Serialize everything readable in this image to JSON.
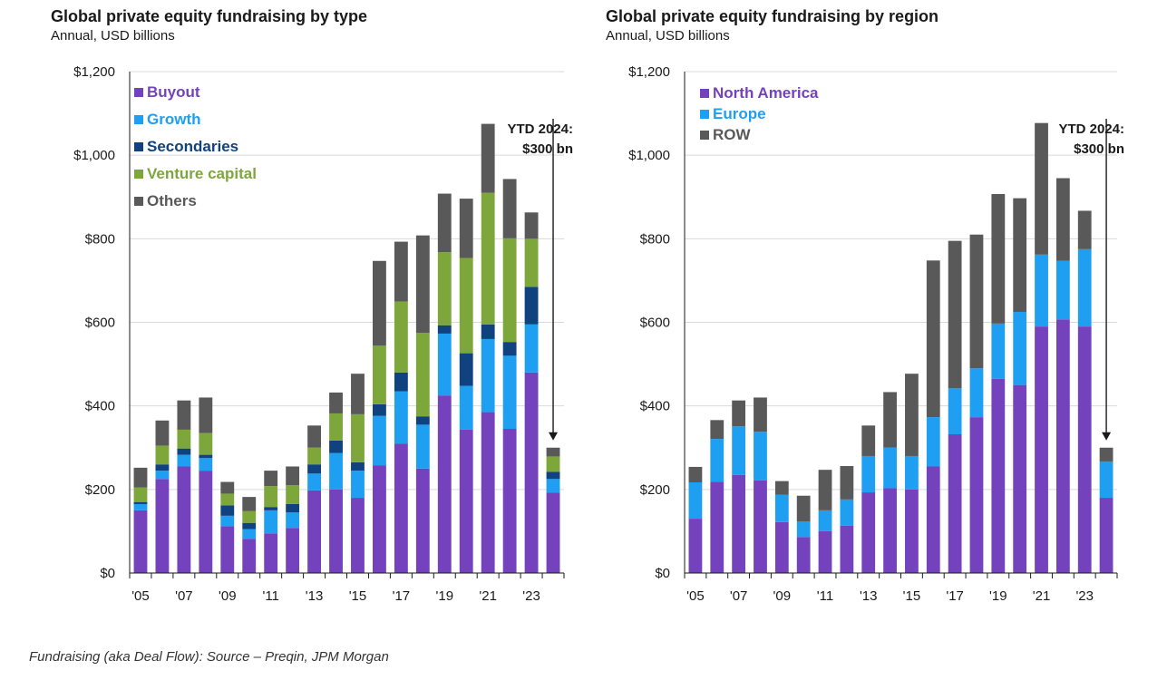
{
  "chart_data": [
    {
      "type": "bar",
      "stacked": true,
      "title": "Global private equity fundraising by type",
      "subtitle": "Annual, USD billions",
      "xlabel": "",
      "ylabel": "",
      "ylim": [
        0,
        1200
      ],
      "yticks": [
        0,
        200,
        400,
        600,
        800,
        1000,
        1200
      ],
      "ytick_labels": [
        "$0",
        "$200",
        "$400",
        "$600",
        "$800",
        "$1,000",
        "$1,200"
      ],
      "categories": [
        "2005",
        "2006",
        "2007",
        "2008",
        "2009",
        "2010",
        "2011",
        "2012",
        "2013",
        "2014",
        "2015",
        "2016",
        "2017",
        "2018",
        "2019",
        "2020",
        "2021",
        "2022",
        "2023",
        "2024"
      ],
      "xtick_labels": [
        "'05",
        "",
        "'07",
        "",
        "'09",
        "",
        "'11",
        "",
        "'13",
        "",
        "'15",
        "",
        "'17",
        "",
        "'19",
        "",
        "'21",
        "",
        "'23",
        ""
      ],
      "legend_position": "top-left",
      "grid": "horizontal",
      "series": [
        {
          "name": "Buyout",
          "color": "#7442BD",
          "values": [
            150,
            225,
            255,
            245,
            112,
            82,
            95,
            108,
            198,
            200,
            180,
            258,
            310,
            250,
            425,
            343,
            385,
            345,
            480,
            192
          ]
        },
        {
          "name": "Growth",
          "color": "#1E9FF2",
          "values": [
            15,
            20,
            28,
            30,
            25,
            23,
            55,
            37,
            40,
            87,
            65,
            118,
            125,
            105,
            148,
            105,
            175,
            175,
            115,
            33
          ]
        },
        {
          "name": "Secondaries",
          "color": "#10427F",
          "values": [
            5,
            15,
            15,
            8,
            25,
            15,
            8,
            20,
            22,
            30,
            20,
            28,
            45,
            20,
            20,
            78,
            35,
            33,
            90,
            17
          ]
        },
        {
          "name": "Venture capital",
          "color": "#7EA73B",
          "values": [
            35,
            45,
            45,
            52,
            28,
            28,
            50,
            45,
            40,
            65,
            115,
            140,
            170,
            200,
            175,
            228,
            315,
            248,
            115,
            37
          ]
        },
        {
          "name": "Others",
          "color": "#595959",
          "values": [
            47,
            60,
            70,
            85,
            28,
            34,
            37,
            45,
            53,
            50,
            97,
            203,
            143,
            233,
            140,
            142,
            165,
            142,
            63,
            21
          ]
        }
      ],
      "annotation": {
        "line1": "YTD 2024:",
        "line2": "$300 bn",
        "category": "2024",
        "value": 300
      }
    },
    {
      "type": "bar",
      "stacked": true,
      "title": "Global private equity fundraising by region",
      "subtitle": "Annual, USD billions",
      "xlabel": "",
      "ylabel": "",
      "ylim": [
        0,
        1200
      ],
      "yticks": [
        0,
        200,
        400,
        600,
        800,
        1000,
        1200
      ],
      "ytick_labels": [
        "$0",
        "$200",
        "$400",
        "$600",
        "$800",
        "$1,000",
        "$1,200"
      ],
      "categories": [
        "2005",
        "2006",
        "2007",
        "2008",
        "2009",
        "2010",
        "2011",
        "2012",
        "2013",
        "2014",
        "2015",
        "2016",
        "2017",
        "2018",
        "2019",
        "2020",
        "2021",
        "2022",
        "2023",
        "2024"
      ],
      "xtick_labels": [
        "'05",
        "",
        "'07",
        "",
        "'09",
        "",
        "'11",
        "",
        "'13",
        "",
        "'15",
        "",
        "'17",
        "",
        "'19",
        "",
        "'21",
        "",
        "'23",
        ""
      ],
      "legend_position": "top-left",
      "grid": "horizontal",
      "series": [
        {
          "name": "North America",
          "color": "#7442BD",
          "values": [
            130,
            218,
            235,
            222,
            122,
            86,
            100,
            113,
            193,
            203,
            200,
            255,
            332,
            373,
            465,
            450,
            590,
            607,
            590,
            180
          ]
        },
        {
          "name": "Europe",
          "color": "#1E9FF2",
          "values": [
            87,
            103,
            116,
            116,
            65,
            37,
            50,
            63,
            87,
            97,
            80,
            118,
            110,
            117,
            132,
            175,
            172,
            140,
            185,
            87
          ]
        },
        {
          "name": "ROW",
          "color": "#595959",
          "values": [
            37,
            45,
            62,
            82,
            33,
            62,
            97,
            80,
            73,
            133,
            197,
            375,
            353,
            320,
            310,
            272,
            315,
            198,
            92,
            33
          ]
        }
      ],
      "annotation": {
        "line1": "YTD 2024:",
        "line2": "$300 bn",
        "category": "2024",
        "value": 300
      }
    }
  ],
  "footer": {
    "source": "Fundraising (aka Deal Flow):  Source – Preqin, JPM Morgan"
  }
}
